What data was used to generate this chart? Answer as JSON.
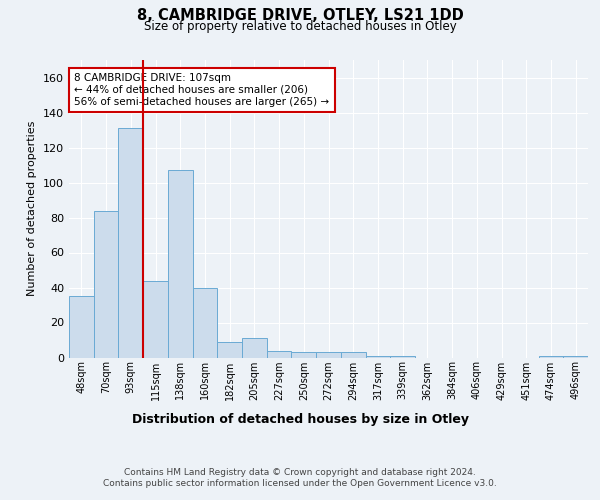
{
  "title": "8, CAMBRIDGE DRIVE, OTLEY, LS21 1DD",
  "subtitle": "Size of property relative to detached houses in Otley",
  "xlabel": "Distribution of detached houses by size in Otley",
  "ylabel": "Number of detached properties",
  "bin_labels": [
    "48sqm",
    "70sqm",
    "93sqm",
    "115sqm",
    "138sqm",
    "160sqm",
    "182sqm",
    "205sqm",
    "227sqm",
    "250sqm",
    "272sqm",
    "294sqm",
    "317sqm",
    "339sqm",
    "362sqm",
    "384sqm",
    "406sqm",
    "429sqm",
    "451sqm",
    "474sqm",
    "496sqm"
  ],
  "bar_heights": [
    35,
    84,
    131,
    44,
    107,
    40,
    9,
    11,
    4,
    3,
    3,
    3,
    1,
    1,
    0,
    0,
    0,
    0,
    0,
    1,
    1
  ],
  "bar_color": "#ccdcec",
  "bar_edge_color": "#6aaad4",
  "vline_color": "#cc0000",
  "annotation_text": "8 CAMBRIDGE DRIVE: 107sqm\n← 44% of detached houses are smaller (206)\n56% of semi-detached houses are larger (265) →",
  "annotation_box_color": "#ffffff",
  "annotation_box_edge": "#cc0000",
  "ylim": [
    0,
    170
  ],
  "yticks": [
    0,
    20,
    40,
    60,
    80,
    100,
    120,
    140,
    160
  ],
  "footer": "Contains HM Land Registry data © Crown copyright and database right 2024.\nContains public sector information licensed under the Open Government Licence v3.0.",
  "background_color": "#edf2f7"
}
